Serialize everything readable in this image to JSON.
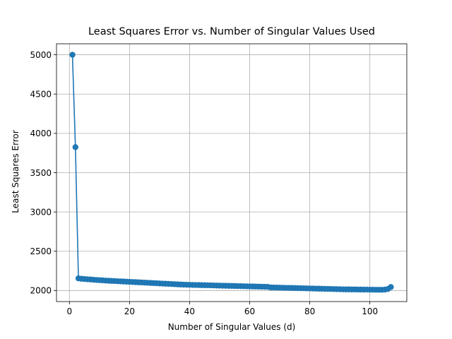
{
  "chart_data": {
    "type": "line",
    "title": "Least Squares Error vs. Number of Singular Values Used",
    "xlabel": "Number of Singular Values (d)",
    "ylabel": "Least Squares Error",
    "xlim": [
      -4.3,
      112.3
    ],
    "ylim": [
      1860,
      5140
    ],
    "x_ticks": [
      0,
      20,
      40,
      60,
      80,
      100
    ],
    "y_ticks": [
      2000,
      2500,
      3000,
      3500,
      4000,
      4500,
      5000
    ],
    "grid": true,
    "marker": "circle",
    "series": [
      {
        "color": "#1f77b4",
        "x": [
          1,
          2,
          3,
          4,
          5,
          6,
          7,
          8,
          9,
          10,
          11,
          12,
          13,
          14,
          15,
          16,
          17,
          18,
          19,
          20,
          21,
          22,
          23,
          24,
          25,
          26,
          27,
          28,
          29,
          30,
          31,
          32,
          33,
          34,
          35,
          36,
          37,
          38,
          39,
          40,
          41,
          42,
          43,
          44,
          45,
          46,
          47,
          48,
          49,
          50,
          51,
          52,
          53,
          54,
          55,
          56,
          57,
          58,
          59,
          60,
          61,
          62,
          63,
          64,
          65,
          66,
          67,
          68,
          69,
          70,
          71,
          72,
          73,
          74,
          75,
          76,
          77,
          78,
          79,
          80,
          81,
          82,
          83,
          84,
          85,
          86,
          87,
          88,
          89,
          90,
          91,
          92,
          93,
          94,
          95,
          96,
          97,
          98,
          99,
          100,
          101,
          102,
          103,
          104,
          105,
          106,
          107
        ],
        "values": [
          5000,
          3825,
          2155,
          2150,
          2147,
          2144,
          2141,
          2138,
          2135,
          2132,
          2130,
          2127,
          2125,
          2123,
          2121,
          2119,
          2117,
          2115,
          2113,
          2111,
          2109,
          2107,
          2105,
          2103,
          2101,
          2099,
          2097,
          2095,
          2093,
          2091,
          2089,
          2087,
          2085,
          2083,
          2081,
          2079,
          2077,
          2075,
          2074,
          2073,
          2072,
          2071,
          2070,
          2069,
          2068,
          2067,
          2066,
          2065,
          2064,
          2063,
          2062,
          2061,
          2060,
          2059,
          2058,
          2057,
          2056,
          2055,
          2054,
          2053,
          2052,
          2051,
          2050,
          2049,
          2048,
          2047,
          2040,
          2039,
          2038,
          2037,
          2036,
          2035,
          2034,
          2033,
          2032,
          2031,
          2030,
          2029,
          2028,
          2027,
          2026,
          2025,
          2024,
          2023,
          2022,
          2021,
          2020,
          2019,
          2018,
          2017,
          2016,
          2015,
          2015,
          2014,
          2014,
          2013,
          2013,
          2012,
          2012,
          2011,
          2011,
          2010,
          2010,
          2010,
          2012,
          2020,
          2045
        ]
      }
    ]
  }
}
